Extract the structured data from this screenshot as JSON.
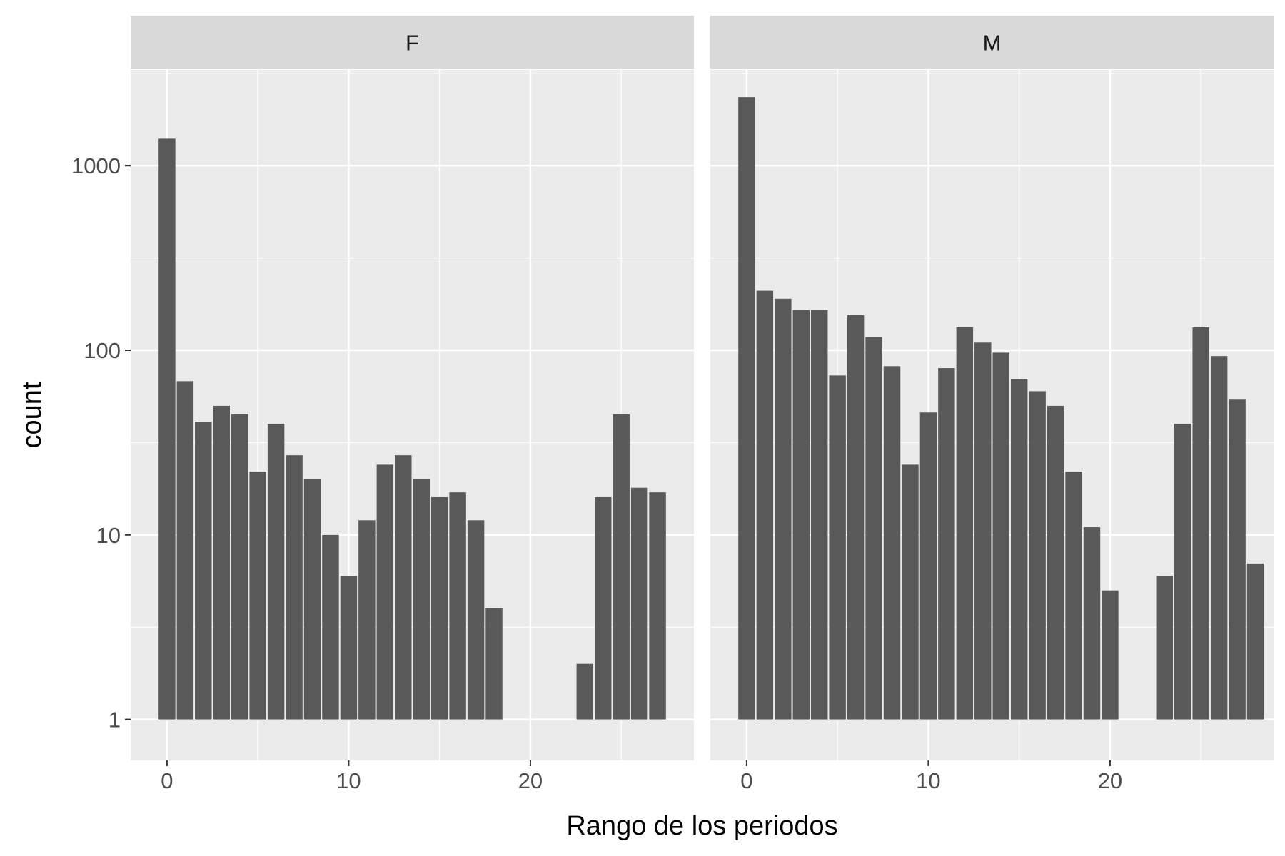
{
  "chart_data": {
    "type": "bar",
    "facet_by": "sex",
    "xlabel": "Rango de los periodos",
    "ylabel": "count",
    "y_scale": "log10",
    "x_ticks": [
      0,
      10,
      20
    ],
    "x_tick_labels": [
      "0",
      "10",
      "20"
    ],
    "y_ticks": [
      1,
      10,
      100,
      1000
    ],
    "y_tick_labels": [
      "1",
      "10",
      "100",
      "1000"
    ],
    "xlim": [
      -2,
      29
    ],
    "ylim": [
      0.6,
      3300
    ],
    "grid": true,
    "bar_color": "#595959",
    "panel_color": "#ebebeb",
    "strip_color": "#d9d9d9",
    "x": [
      0,
      1,
      2,
      3,
      4,
      5,
      6,
      7,
      8,
      9,
      10,
      11,
      12,
      13,
      14,
      15,
      16,
      17,
      18,
      19,
      20,
      21,
      22,
      23,
      24,
      25,
      26,
      27,
      28
    ],
    "panels": [
      {
        "label": "F",
        "values": [
          1400,
          68,
          41,
          50,
          45,
          22,
          40,
          27,
          20,
          10,
          6,
          12,
          24,
          27,
          20,
          16,
          17,
          12,
          4,
          1,
          1,
          1,
          1,
          2,
          16,
          45,
          18,
          17,
          1
        ]
      },
      {
        "label": "M",
        "values": [
          2350,
          210,
          190,
          165,
          165,
          73,
          155,
          118,
          82,
          24,
          46,
          80,
          133,
          110,
          97,
          70,
          60,
          50,
          22,
          11,
          5,
          1,
          1,
          6,
          40,
          133,
          93,
          54,
          7
        ]
      }
    ]
  }
}
